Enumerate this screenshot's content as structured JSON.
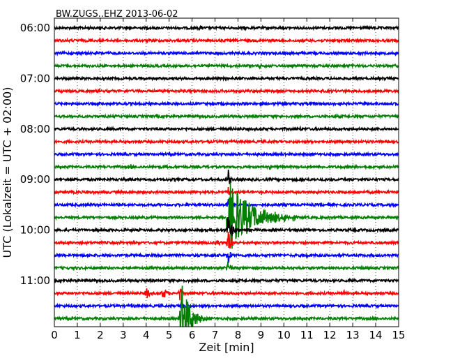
{
  "chart_data": {
    "type": "line",
    "title": "BW.ZUGS..EHZ 2013-06-02",
    "xlabel": "Zeit  [min]",
    "ylabel": "UTC (Lokalzeit = UTC + 02:00)",
    "xlim": [
      0,
      15
    ],
    "x_ticks": [
      "0",
      "1",
      "2",
      "3",
      "4",
      "5",
      "6",
      "7",
      "8",
      "9",
      "10",
      "11",
      "12",
      "13",
      "14",
      "15"
    ],
    "y_ticks": [
      "06:00",
      "07:00",
      "08:00",
      "09:00",
      "10:00",
      "11:00"
    ],
    "trace_interval_min": 15,
    "first_trace": "06:00",
    "grid": "vertical dotted",
    "trace_colors": [
      "#000000",
      "#ff0000",
      "#0000ff",
      "#007f00"
    ],
    "series": [
      {
        "start": "06:00",
        "color": "#000000",
        "events": [
          {
            "t": 6.3,
            "amp": 0.35,
            "dur": 0.5
          }
        ]
      },
      {
        "start": "06:15",
        "color": "#ff0000",
        "events": []
      },
      {
        "start": "06:30",
        "color": "#0000ff",
        "events": []
      },
      {
        "start": "06:45",
        "color": "#007f00",
        "events": [
          {
            "t": 8.9,
            "amp": 0.3,
            "dur": 0.4
          }
        ]
      },
      {
        "start": "07:00",
        "color": "#000000",
        "events": [
          {
            "t": 11.0,
            "amp": 0.3,
            "dur": 0.3
          }
        ]
      },
      {
        "start": "07:15",
        "color": "#ff0000",
        "events": []
      },
      {
        "start": "07:30",
        "color": "#0000ff",
        "events": []
      },
      {
        "start": "07:45",
        "color": "#007f00",
        "events": []
      },
      {
        "start": "08:00",
        "color": "#000000",
        "events": [
          {
            "t": 4.6,
            "amp": 0.2,
            "dur": 0.2
          },
          {
            "t": 10.7,
            "amp": 0.3,
            "dur": 0.2
          }
        ]
      },
      {
        "start": "08:15",
        "color": "#ff0000",
        "events": []
      },
      {
        "start": "08:30",
        "color": "#0000ff",
        "events": []
      },
      {
        "start": "08:45",
        "color": "#007f00",
        "events": [
          {
            "t": 3.3,
            "amp": 0.4,
            "dur": 0.3
          },
          {
            "t": 9.4,
            "amp": 0.3,
            "dur": 0.2
          },
          {
            "t": 7.55,
            "amp": 0.25,
            "dur": 0.2
          }
        ]
      },
      {
        "start": "09:00",
        "color": "#000000",
        "events": [
          {
            "t": 7.55,
            "amp": 1.4,
            "dur": 0.3
          }
        ]
      },
      {
        "start": "09:15",
        "color": "#ff0000",
        "events": [
          {
            "t": 7.55,
            "amp": 0.8,
            "dur": 0.3
          }
        ]
      },
      {
        "start": "09:30",
        "color": "#0000ff",
        "events": [
          {
            "t": 7.55,
            "amp": 0.8,
            "dur": 0.3
          }
        ]
      },
      {
        "start": "09:45",
        "color": "#007f00",
        "events": [
          {
            "t": 7.55,
            "amp": 4.0,
            "dur": 3.0
          },
          {
            "t": 9.6,
            "amp": 0.8,
            "dur": 0.3
          },
          {
            "t": 10.0,
            "amp": 0.8,
            "dur": 0.3
          },
          {
            "t": 10.4,
            "amp": 0.8,
            "dur": 0.2
          }
        ]
      },
      {
        "start": "10:00",
        "color": "#000000",
        "events": [
          {
            "t": 7.55,
            "amp": 1.6,
            "dur": 0.6
          }
        ]
      },
      {
        "start": "10:15",
        "color": "#ff0000",
        "events": [
          {
            "t": 7.1,
            "amp": 0.5,
            "dur": 0.4
          },
          {
            "t": 7.55,
            "amp": 1.5,
            "dur": 0.5
          }
        ]
      },
      {
        "start": "10:30",
        "color": "#0000ff",
        "events": [
          {
            "t": 7.55,
            "amp": 1.2,
            "dur": 0.3
          },
          {
            "t": 10.95,
            "amp": 0.4,
            "dur": 0.4
          }
        ]
      },
      {
        "start": "10:45",
        "color": "#007f00",
        "events": [
          {
            "t": 7.55,
            "amp": 1.3,
            "dur": 0.3
          },
          {
            "t": 11.5,
            "amp": 0.2,
            "dur": 0.2
          }
        ]
      },
      {
        "start": "11:00",
        "color": "#000000",
        "events": [
          {
            "t": 5.5,
            "amp": 0.3,
            "dur": 0.2
          }
        ]
      },
      {
        "start": "11:15",
        "color": "#ff0000",
        "events": [
          {
            "t": 4.0,
            "amp": 0.8,
            "dur": 0.4
          },
          {
            "t": 4.7,
            "amp": 0.7,
            "dur": 0.7
          },
          {
            "t": 5.45,
            "amp": 1.0,
            "dur": 0.3
          },
          {
            "t": 12.6,
            "amp": 0.4,
            "dur": 0.4
          }
        ]
      },
      {
        "start": "11:30",
        "color": "#0000ff",
        "events": [
          {
            "t": 3.35,
            "amp": 0.3,
            "dur": 0.3
          },
          {
            "t": 5.5,
            "amp": 1.0,
            "dur": 0.4
          }
        ]
      },
      {
        "start": "11:45",
        "color": "#007f00",
        "events": [
          {
            "t": 5.5,
            "amp": 4.0,
            "dur": 1.2
          }
        ]
      }
    ]
  }
}
